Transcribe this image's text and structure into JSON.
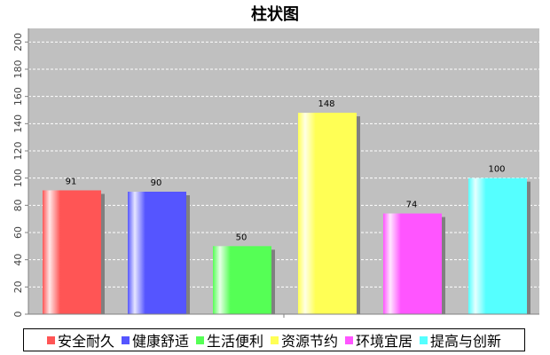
{
  "chart_data": {
    "type": "bar",
    "title": "柱状图",
    "xlabel": "",
    "ylabel": "",
    "categories": [
      "安全耐久",
      "健康舒适",
      "生活便利",
      "资源节约",
      "环境宜居",
      "提高与创新"
    ],
    "values": [
      91,
      90,
      50,
      148,
      74,
      100
    ],
    "colors": [
      "#ff5555",
      "#5555ff",
      "#55ff55",
      "#ffff55",
      "#ff55ff",
      "#55ffff"
    ],
    "ylim": [
      0,
      210
    ],
    "yticks": [
      0,
      20,
      40,
      60,
      80,
      100,
      120,
      140,
      160,
      180,
      200
    ],
    "grid": true,
    "legend_position": "bottom"
  }
}
